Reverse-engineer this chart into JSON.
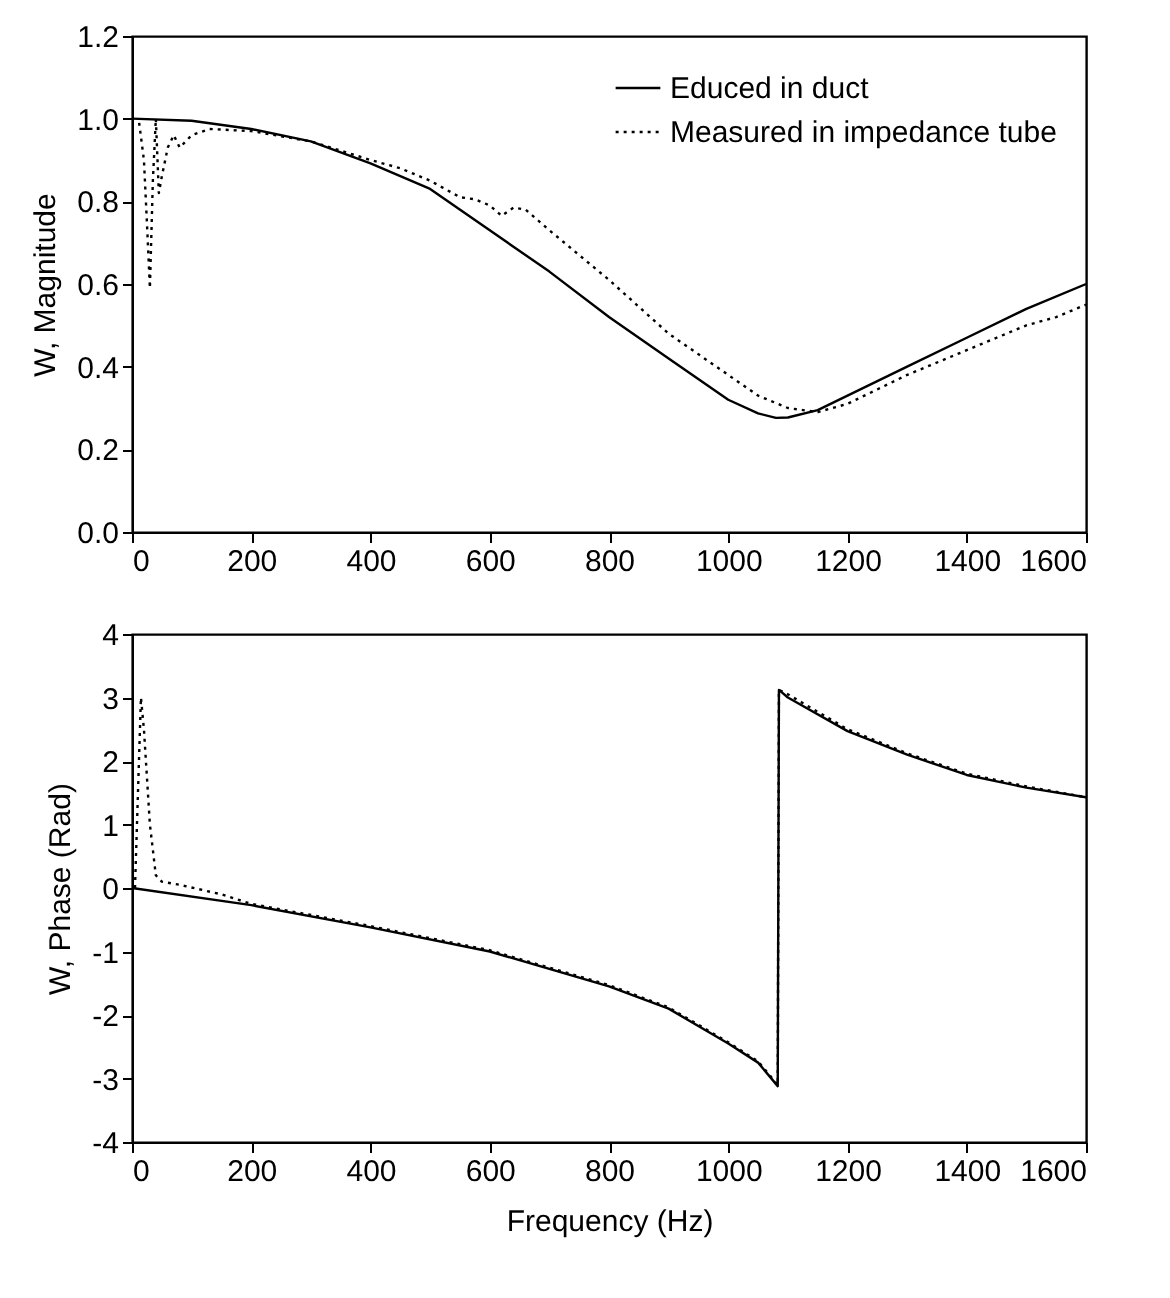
{
  "chart_data": [
    {
      "type": "line",
      "ylabel": "W, Magnitude",
      "legend": "top right",
      "xlim": [
        0,
        1600
      ],
      "xticks": [
        0,
        200,
        400,
        600,
        800,
        1000,
        1200,
        1400,
        1600
      ],
      "ylim": [
        0,
        1.2
      ],
      "yticks": [
        {
          "value": 0,
          "label": "0.0"
        },
        {
          "value": 0.2,
          "label": "0.2"
        },
        {
          "value": 0.4,
          "label": "0.4"
        },
        {
          "value": 0.6,
          "label": "0.6"
        },
        {
          "value": 0.8,
          "label": "0.8"
        },
        {
          "value": 1,
          "label": "1.0"
        },
        {
          "value": 1.2,
          "label": "1.2"
        }
      ],
      "series": [
        {
          "name": "Educed in duct",
          "color": "#000000",
          "line_style": "solid",
          "x": [
            0,
            100,
            200,
            300,
            400,
            500,
            600,
            700,
            800,
            900,
            1000,
            1050,
            1080,
            1100,
            1150,
            1200,
            1300,
            1400,
            1500,
            1600
          ],
          "values": [
            1.0,
            0.995,
            0.975,
            0.945,
            0.892,
            0.83,
            0.73,
            0.63,
            0.52,
            0.42,
            0.32,
            0.287,
            0.276,
            0.277,
            0.295,
            0.33,
            0.4,
            0.47,
            0.54,
            0.6
          ]
        },
        {
          "name": "Measured in impedance tube",
          "color": "#000000",
          "line_style": "dotted",
          "x": [
            12,
            20,
            25,
            30,
            35,
            40,
            45,
            50,
            60,
            70,
            80,
            100,
            130,
            200,
            300,
            400,
            450,
            500,
            550,
            575,
            600,
            620,
            640,
            660,
            700,
            750,
            800,
            900,
            1000,
            1050,
            1100,
            1150,
            1200,
            1300,
            1400,
            1450,
            1500,
            1550,
            1600
          ],
          "values": [
            0.99,
            0.9,
            0.75,
            0.59,
            0.85,
            1.0,
            0.82,
            0.86,
            0.93,
            0.96,
            0.93,
            0.96,
            0.975,
            0.97,
            0.945,
            0.9,
            0.88,
            0.85,
            0.81,
            0.805,
            0.79,
            0.765,
            0.785,
            0.78,
            0.73,
            0.67,
            0.61,
            0.48,
            0.38,
            0.33,
            0.3,
            0.29,
            0.31,
            0.38,
            0.44,
            0.47,
            0.5,
            0.52,
            0.55
          ]
        }
      ]
    },
    {
      "type": "line",
      "xlabel": "Frequency (Hz)",
      "ylabel": "W, Phase (Rad)",
      "xlim": [
        0,
        1600
      ],
      "xticks": [
        0,
        200,
        400,
        600,
        800,
        1000,
        1200,
        1400,
        1600
      ],
      "ylim": [
        -4,
        4
      ],
      "yticks": [
        -4,
        -3,
        -2,
        -1,
        0,
        1,
        2,
        3,
        4
      ],
      "series": [
        {
          "color": "#000000",
          "line_style": "solid",
          "x": [
            0,
            200,
            400,
            600,
            800,
            900,
            1000,
            1050,
            1083,
            1085,
            1100,
            1200,
            1300,
            1400,
            1500,
            1600
          ],
          "values": [
            0,
            -0.27,
            -0.62,
            -1.0,
            -1.55,
            -1.9,
            -2.45,
            -2.75,
            -3.12,
            3.12,
            3.0,
            2.47,
            2.1,
            1.78,
            1.58,
            1.43
          ]
        },
        {
          "color": "#000000",
          "line_style": "dotted",
          "x": [
            5,
            15,
            20,
            30,
            40,
            50,
            80,
            150,
            200,
            400,
            600,
            800,
            900,
            1000,
            1050,
            1083,
            1085,
            1100,
            1200,
            1300,
            1400,
            1500,
            1600
          ],
          "values": [
            0,
            3.0,
            2.5,
            1.0,
            0.2,
            0.1,
            0.05,
            -0.1,
            -0.25,
            -0.6,
            -0.98,
            -1.53,
            -1.88,
            -2.43,
            -2.73,
            -3.1,
            3.12,
            3.05,
            2.5,
            2.12,
            1.8,
            1.6,
            1.43
          ]
        }
      ]
    }
  ]
}
